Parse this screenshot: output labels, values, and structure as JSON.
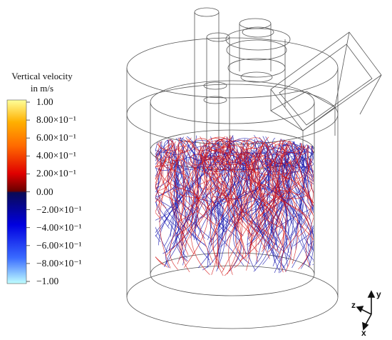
{
  "legend": {
    "title_line1": "Vertical velocity",
    "title_line2": "in m/s",
    "ticks": [
      "1.00",
      "8.00×10⁻¹",
      "6.00×10⁻¹",
      "4.00×10⁻¹",
      "2.00×10⁻¹",
      "0.00",
      "−2.00×10⁻¹",
      "−4.00×10⁻¹",
      "−6.00×10⁻¹",
      "−8.00×10⁻¹",
      "−1.00"
    ],
    "range": [
      1.0,
      -1.0
    ],
    "colors": {
      "max": "#ffff99",
      "high": "#ff6a00",
      "mid_pos": "#e00000",
      "zero": "#6b0000",
      "zero_neg": "#0a0a55",
      "mid_neg": "#0000e0",
      "low": "#3a6bff",
      "min": "#c0ffff"
    }
  },
  "axes": {
    "z": "z",
    "y": "y",
    "x": "x"
  },
  "streamline_colors": {
    "upward": "#d41414",
    "downward": "#1c1cb0"
  }
}
